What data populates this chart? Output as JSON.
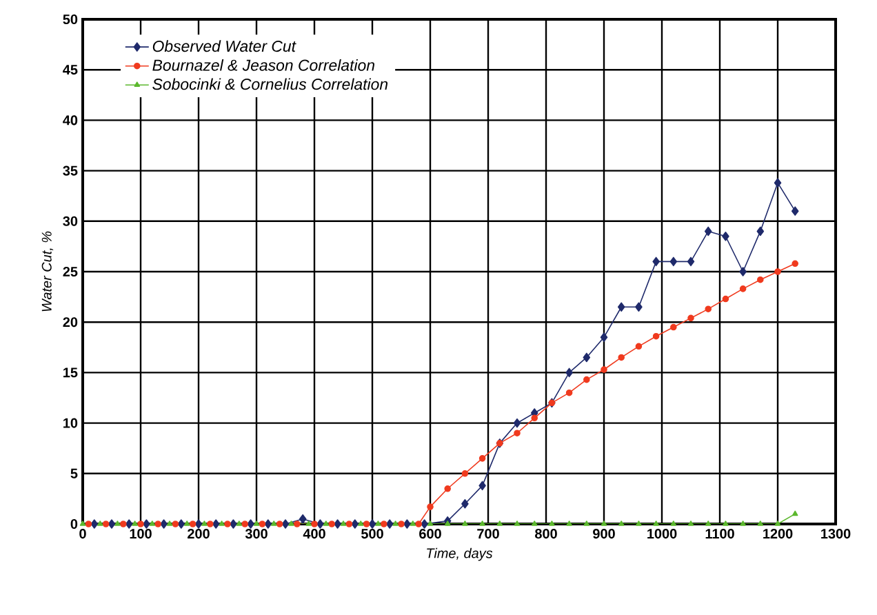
{
  "chart_data": {
    "type": "line",
    "xlabel": "Time, days",
    "ylabel": "Water Cut, %",
    "xlim": [
      0,
      1300
    ],
    "xticks": [
      0,
      100,
      200,
      300,
      400,
      500,
      600,
      700,
      800,
      900,
      1000,
      1100,
      1200,
      1300
    ],
    "ylim": [
      0,
      50
    ],
    "yticks": [
      0,
      5,
      10,
      15,
      20,
      25,
      30,
      35,
      40,
      45,
      50
    ],
    "grid": true,
    "legend": "top left",
    "line_style": "solid",
    "series": [
      {
        "name": "Observed Water Cut",
        "color": "#1f2a6b",
        "marker": "diamond",
        "x": [
          20,
          50,
          80,
          110,
          140,
          170,
          200,
          230,
          260,
          290,
          320,
          350,
          380,
          410,
          440,
          470,
          500,
          530,
          560,
          590,
          630,
          660,
          690,
          720,
          750,
          780,
          810,
          840,
          870,
          900,
          930,
          960,
          990,
          1020,
          1050,
          1080,
          1110,
          1140,
          1170,
          1200,
          1230
        ],
        "values": [
          0,
          0,
          0,
          0,
          0,
          0,
          0,
          0,
          0,
          0,
          0,
          0,
          0.5,
          0,
          0,
          0,
          0,
          0,
          0,
          0,
          0.3,
          2,
          3.8,
          8,
          10,
          11,
          12,
          15,
          16.5,
          18.5,
          21.5,
          21.5,
          26,
          26,
          26,
          29,
          28.5,
          25,
          29,
          33.8,
          31
        ]
      },
      {
        "name": "Bournazel & Jeason Correlation",
        "color": "#f03a1e",
        "marker": "circle",
        "x": [
          10,
          40,
          70,
          100,
          130,
          160,
          190,
          220,
          250,
          280,
          310,
          340,
          370,
          400,
          430,
          460,
          490,
          520,
          550,
          580,
          600,
          630,
          660,
          690,
          720,
          750,
          780,
          810,
          840,
          870,
          900,
          930,
          960,
          990,
          1020,
          1050,
          1080,
          1110,
          1140,
          1170,
          1200,
          1230
        ],
        "values": [
          0,
          0,
          0,
          0,
          0,
          0,
          0,
          0,
          0,
          0,
          0,
          0,
          0,
          0,
          0,
          0,
          0,
          0,
          0,
          0,
          1.7,
          3.5,
          5,
          6.5,
          8,
          9,
          10.5,
          12,
          13,
          14.3,
          15.3,
          16.5,
          17.6,
          18.6,
          19.5,
          20.4,
          21.3,
          22.3,
          23.3,
          24.2,
          25,
          25.8
        ]
      },
      {
        "name": "Sobocinki & Cornelius Correlation",
        "color": "#5cb82e",
        "marker": "triangle",
        "x": [
          0,
          30,
          60,
          90,
          120,
          150,
          180,
          210,
          240,
          270,
          300,
          330,
          360,
          390,
          420,
          450,
          480,
          510,
          540,
          570,
          600,
          630,
          660,
          690,
          720,
          750,
          780,
          810,
          840,
          870,
          900,
          930,
          960,
          990,
          1020,
          1050,
          1080,
          1110,
          1140,
          1170,
          1200,
          1230
        ],
        "values": [
          0,
          0,
          0,
          0,
          0,
          0,
          0,
          0,
          0,
          0,
          0,
          0,
          0,
          0,
          0,
          0,
          0,
          0,
          0,
          0,
          0,
          0,
          0,
          0,
          0,
          0,
          0,
          0,
          0,
          0,
          0,
          0,
          0,
          0,
          0,
          0,
          0,
          0,
          0,
          0,
          0,
          1
        ]
      }
    ]
  }
}
